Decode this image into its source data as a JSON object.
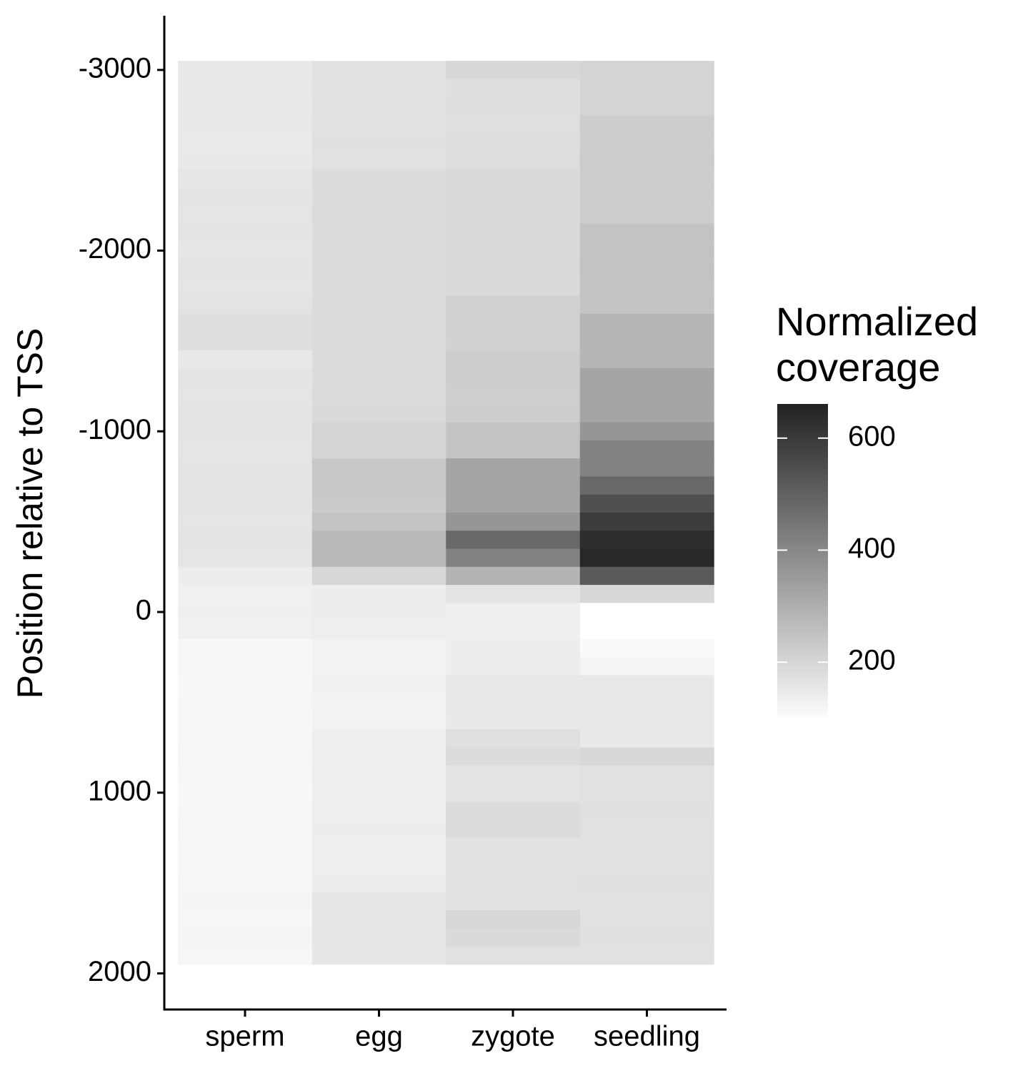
{
  "chart_data": {
    "type": "heatmap",
    "y_label": "Position relative to TSS",
    "colorbar_title": "Normalized coverage",
    "categories": [
      "sperm",
      "egg",
      "zygote",
      "seedling"
    ],
    "y": [
      -3000,
      -2900,
      -2800,
      -2700,
      -2600,
      -2500,
      -2400,
      -2300,
      -2200,
      -2100,
      -2000,
      -1900,
      -1800,
      -1700,
      -1600,
      -1500,
      -1400,
      -1300,
      -1200,
      -1100,
      -1000,
      -900,
      -800,
      -700,
      -600,
      -500,
      -400,
      -300,
      -200,
      -100,
      0,
      100,
      200,
      300,
      400,
      500,
      600,
      700,
      800,
      900,
      1000,
      1100,
      1200,
      1300,
      1400,
      1500,
      1600,
      1700,
      1800,
      1900
    ],
    "values": [
      [
        152,
        152,
        150,
        152,
        148,
        150,
        158,
        162,
        160,
        162,
        158,
        162,
        160,
        165,
        178,
        178,
        152,
        162,
        160,
        162,
        162,
        160,
        162,
        162,
        162,
        160,
        162,
        160,
        139,
        132,
        134,
        132,
        114,
        114,
        112,
        114,
        114,
        114,
        116,
        114,
        112,
        114,
        116,
        114,
        114,
        116,
        118,
        116,
        118,
        116
      ],
      [
        170,
        168,
        170,
        168,
        172,
        170,
        183,
        183,
        185,
        183,
        183,
        185,
        183,
        183,
        183,
        185,
        183,
        183,
        185,
        190,
        203,
        203,
        234,
        234,
        230,
        247,
        273,
        273,
        195,
        139,
        139,
        137,
        126,
        126,
        128,
        124,
        126,
        136,
        136,
        136,
        134,
        136,
        138,
        136,
        136,
        138,
        157,
        157,
        157,
        155
      ],
      [
        195,
        178,
        178,
        176,
        178,
        180,
        188,
        188,
        190,
        188,
        188,
        190,
        188,
        214,
        214,
        212,
        221,
        221,
        218,
        221,
        247,
        247,
        324,
        324,
        326,
        363,
        479,
        414,
        286,
        162,
        136,
        136,
        138,
        140,
        152,
        152,
        150,
        175,
        183,
        162,
        162,
        183,
        183,
        167,
        167,
        169,
        167,
        195,
        188,
        170
      ],
      [
        203,
        203,
        203,
        221,
        221,
        223,
        221,
        221,
        221,
        247,
        247,
        247,
        245,
        247,
        281,
        281,
        281,
        324,
        324,
        324,
        363,
        414,
        414,
        479,
        543,
        594,
        633,
        646,
        517,
        195,
        93,
        93,
        106,
        119,
        152,
        152,
        152,
        152,
        195,
        170,
        170,
        172,
        170,
        170,
        170,
        172,
        170,
        170,
        172,
        170
      ]
    ],
    "ylim": [
      2200,
      -3300
    ],
    "yticks": [
      -3000,
      -2000,
      -1000,
      0,
      1000,
      2000
    ],
    "row_height": 100,
    "colorlim": [
      93,
      661
    ],
    "colorticks": [
      200,
      400,
      600
    ],
    "colors": [
      "#ffffff",
      "#222222"
    ]
  }
}
